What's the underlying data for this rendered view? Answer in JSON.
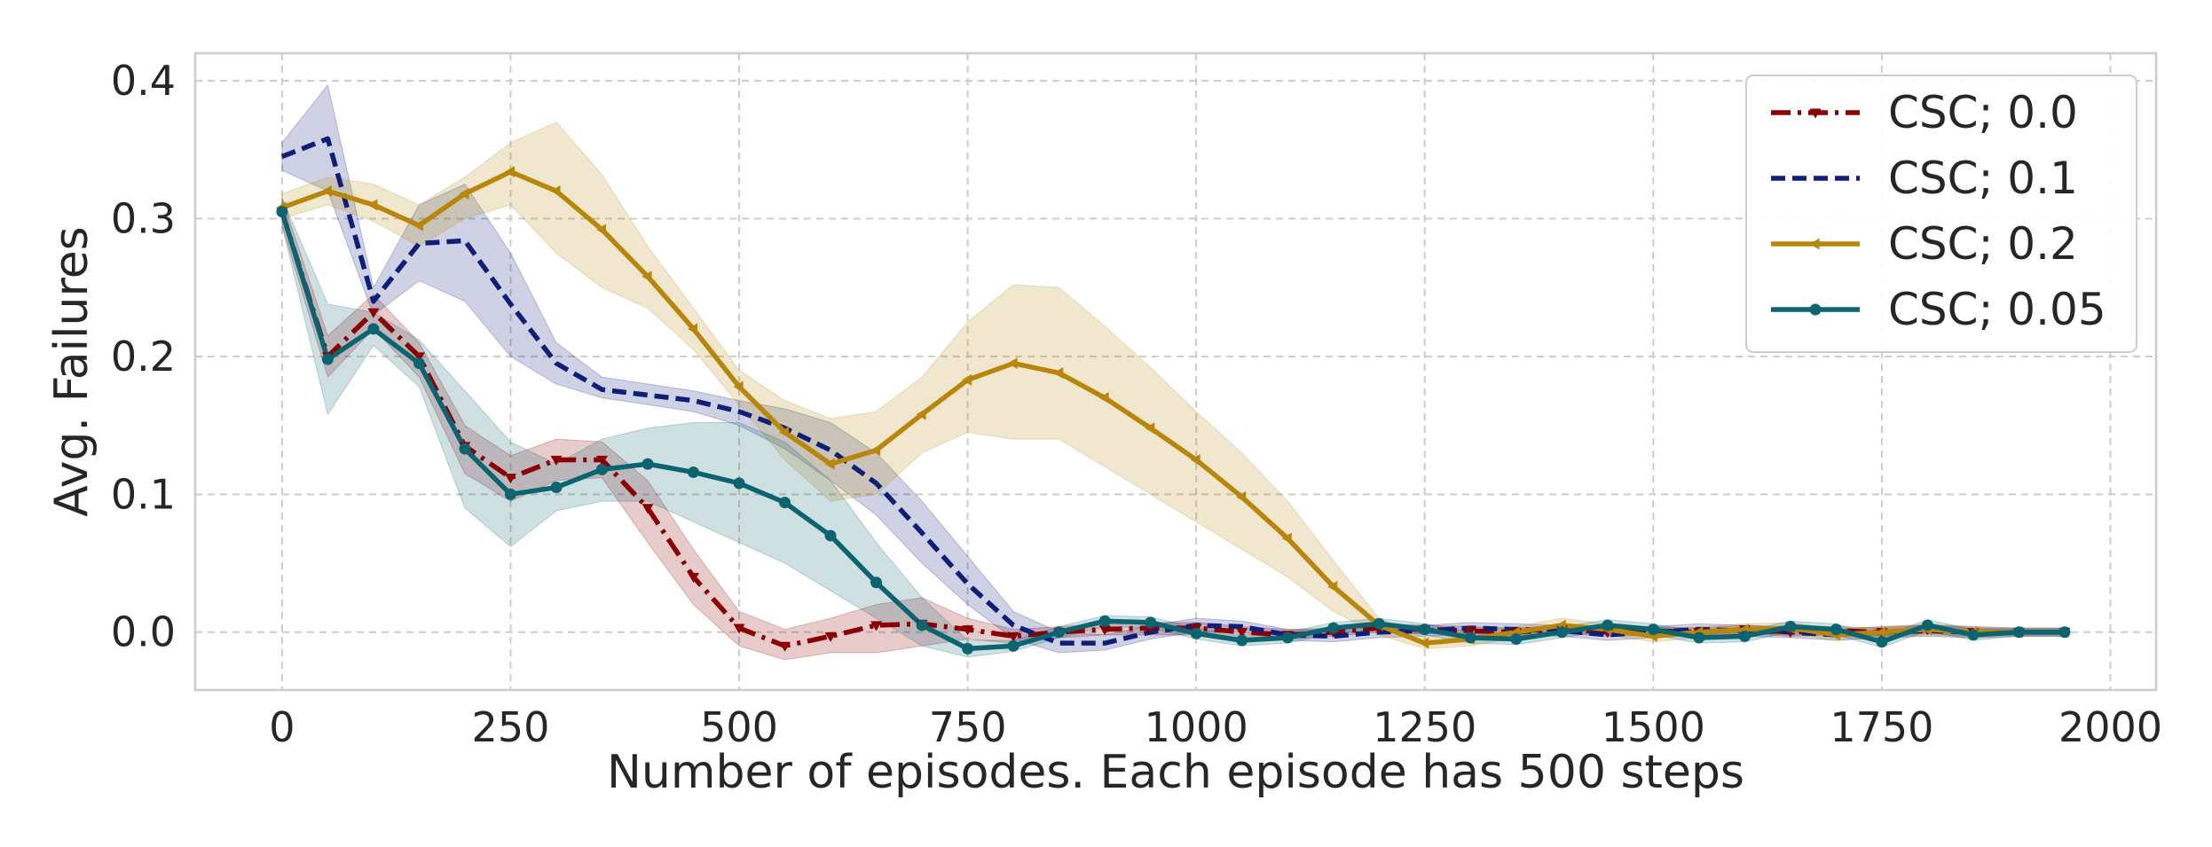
{
  "chart_data": {
    "type": "line",
    "title": "",
    "xlabel": "Number of episodes. Each episode has 500 steps",
    "ylabel": "Avg. Failures",
    "xlim": [
      -95,
      2050
    ],
    "ylim": [
      -0.042,
      0.42
    ],
    "x_ticks": [
      0,
      250,
      500,
      750,
      1000,
      1250,
      1500,
      1750,
      2000
    ],
    "x_tick_labels": [
      "0",
      "250",
      "500",
      "750",
      "1000",
      "1250",
      "1500",
      "1750",
      "2000"
    ],
    "y_ticks": [
      0.0,
      0.1,
      0.2,
      0.3,
      0.4
    ],
    "y_tick_labels": [
      "0.0",
      "0.1",
      "0.2",
      "0.3",
      "0.4"
    ],
    "grid": true,
    "legend_position": "top-right",
    "x": [
      0,
      50,
      100,
      150,
      200,
      250,
      300,
      350,
      400,
      450,
      500,
      550,
      600,
      650,
      700,
      750,
      800,
      850,
      900,
      950,
      1000,
      1050,
      1100,
      1150,
      1200,
      1250,
      1300,
      1350,
      1400,
      1450,
      1500,
      1550,
      1600,
      1650,
      1700,
      1750,
      1800,
      1850,
      1900,
      1950
    ],
    "series": [
      {
        "name": "CSC; 0.0",
        "color": "#8b0000",
        "dash": "dashdot",
        "marker": "triangle-down",
        "values": [
          0.305,
          0.2,
          0.232,
          0.2,
          0.135,
          0.112,
          0.125,
          0.125,
          0.09,
          0.04,
          0.003,
          -0.01,
          -0.003,
          0.005,
          0.006,
          0.002,
          -0.003,
          0.0,
          0.002,
          0.003,
          0.003,
          0.0,
          -0.002,
          0.0,
          0.003,
          0.002,
          0.001,
          0.0,
          0.002,
          0.0,
          0.001,
          0.0,
          0.002,
          0.0,
          0.001,
          0.0,
          0.002,
          0.0,
          0.0,
          0.0
        ],
        "band": [
          [
            0.295,
            0.315
          ],
          [
            0.185,
            0.215
          ],
          [
            0.22,
            0.245
          ],
          [
            0.185,
            0.21
          ],
          [
            0.115,
            0.15
          ],
          [
            0.095,
            0.128
          ],
          [
            0.11,
            0.14
          ],
          [
            0.112,
            0.138
          ],
          [
            0.065,
            0.11
          ],
          [
            0.02,
            0.06
          ],
          [
            -0.01,
            0.015
          ],
          [
            -0.02,
            0.002
          ],
          [
            -0.015,
            0.01
          ],
          [
            -0.015,
            0.02
          ],
          [
            -0.01,
            0.025
          ],
          [
            -0.005,
            0.01
          ],
          [
            -0.008,
            0.002
          ],
          [
            -0.004,
            0.004
          ],
          [
            -0.002,
            0.006
          ],
          [
            -0.002,
            0.007
          ],
          [
            -0.002,
            0.007
          ],
          [
            -0.004,
            0.004
          ],
          [
            -0.005,
            0.002
          ],
          [
            -0.003,
            0.003
          ],
          [
            0.0,
            0.006
          ],
          [
            -0.001,
            0.005
          ],
          [
            -0.002,
            0.004
          ],
          [
            -0.003,
            0.003
          ],
          [
            -0.001,
            0.005
          ],
          [
            -0.003,
            0.003
          ],
          [
            -0.002,
            0.004
          ],
          [
            -0.003,
            0.003
          ],
          [
            -0.001,
            0.005
          ],
          [
            -0.003,
            0.003
          ],
          [
            -0.002,
            0.004
          ],
          [
            -0.003,
            0.003
          ],
          [
            -0.001,
            0.005
          ],
          [
            -0.003,
            0.003
          ],
          [
            -0.002,
            0.002
          ],
          [
            -0.002,
            0.002
          ]
        ]
      },
      {
        "name": "CSC; 0.1",
        "color": "#0f1f78",
        "dash": "dashed",
        "marker": "none",
        "values": [
          0.345,
          0.358,
          0.24,
          0.282,
          0.284,
          0.238,
          0.195,
          0.176,
          0.172,
          0.168,
          0.16,
          0.148,
          0.132,
          0.108,
          0.072,
          0.035,
          0.005,
          -0.008,
          -0.008,
          0.0,
          0.005,
          0.004,
          -0.002,
          -0.003,
          0.0,
          0.001,
          0.003,
          0.002,
          0.001,
          -0.002,
          0.0,
          0.002,
          0.001,
          0.0,
          -0.002,
          0.0,
          0.001,
          0.0,
          0.0,
          0.0
        ],
        "band": [
          [
            0.335,
            0.355
          ],
          [
            0.32,
            0.397
          ],
          [
            0.23,
            0.25
          ],
          [
            0.255,
            0.31
          ],
          [
            0.24,
            0.325
          ],
          [
            0.2,
            0.275
          ],
          [
            0.18,
            0.21
          ],
          [
            0.17,
            0.185
          ],
          [
            0.165,
            0.18
          ],
          [
            0.16,
            0.175
          ],
          [
            0.15,
            0.168
          ],
          [
            0.133,
            0.162
          ],
          [
            0.11,
            0.152
          ],
          [
            0.085,
            0.13
          ],
          [
            0.05,
            0.095
          ],
          [
            0.02,
            0.055
          ],
          [
            -0.005,
            0.015
          ],
          [
            -0.015,
            0.0
          ],
          [
            -0.013,
            -0.002
          ],
          [
            -0.005,
            0.005
          ],
          [
            0.0,
            0.01
          ],
          [
            0.0,
            0.008
          ],
          [
            -0.006,
            0.002
          ],
          [
            -0.007,
            0.001
          ],
          [
            -0.004,
            0.004
          ],
          [
            -0.003,
            0.005
          ],
          [
            -0.001,
            0.007
          ],
          [
            -0.002,
            0.006
          ],
          [
            -0.003,
            0.005
          ],
          [
            -0.006,
            0.002
          ],
          [
            -0.004,
            0.004
          ],
          [
            -0.002,
            0.006
          ],
          [
            -0.003,
            0.005
          ],
          [
            -0.004,
            0.004
          ],
          [
            -0.006,
            0.002
          ],
          [
            -0.004,
            0.004
          ],
          [
            -0.003,
            0.005
          ],
          [
            -0.004,
            0.004
          ],
          [
            -0.003,
            0.003
          ],
          [
            -0.003,
            0.003
          ]
        ]
      },
      {
        "name": "CSC; 0.2",
        "color": "#b8860b",
        "dash": "solid",
        "marker": "triangle-left",
        "values": [
          0.308,
          0.32,
          0.31,
          0.295,
          0.318,
          0.334,
          0.32,
          0.292,
          0.258,
          0.22,
          0.178,
          0.145,
          0.122,
          0.132,
          0.158,
          0.183,
          0.195,
          0.188,
          0.17,
          0.148,
          0.125,
          0.098,
          0.068,
          0.033,
          0.005,
          -0.008,
          -0.005,
          0.0,
          0.005,
          0.002,
          -0.003,
          0.0,
          0.002,
          0.003,
          -0.002,
          0.0,
          0.002,
          0.0,
          0.0,
          0.0
        ],
        "band": [
          [
            0.3,
            0.318
          ],
          [
            0.31,
            0.33
          ],
          [
            0.298,
            0.325
          ],
          [
            0.28,
            0.31
          ],
          [
            0.3,
            0.33
          ],
          [
            0.31,
            0.355
          ],
          [
            0.275,
            0.37
          ],
          [
            0.25,
            0.332
          ],
          [
            0.235,
            0.28
          ],
          [
            0.205,
            0.235
          ],
          [
            0.165,
            0.19
          ],
          [
            0.125,
            0.168
          ],
          [
            0.095,
            0.155
          ],
          [
            0.1,
            0.16
          ],
          [
            0.13,
            0.185
          ],
          [
            0.145,
            0.225
          ],
          [
            0.14,
            0.252
          ],
          [
            0.14,
            0.25
          ],
          [
            0.12,
            0.222
          ],
          [
            0.1,
            0.192
          ],
          [
            0.08,
            0.16
          ],
          [
            0.06,
            0.13
          ],
          [
            0.04,
            0.095
          ],
          [
            0.015,
            0.052
          ],
          [
            -0.002,
            0.01
          ],
          [
            -0.012,
            -0.004
          ],
          [
            -0.01,
            0.0
          ],
          [
            -0.004,
            0.004
          ],
          [
            0.0,
            0.01
          ],
          [
            -0.002,
            0.006
          ],
          [
            -0.007,
            0.001
          ],
          [
            -0.004,
            0.004
          ],
          [
            -0.002,
            0.006
          ],
          [
            -0.001,
            0.007
          ],
          [
            -0.006,
            0.002
          ],
          [
            -0.004,
            0.004
          ],
          [
            -0.002,
            0.006
          ],
          [
            -0.004,
            0.004
          ],
          [
            -0.003,
            0.003
          ],
          [
            -0.003,
            0.003
          ]
        ]
      },
      {
        "name": "CSC; 0.05",
        "color": "#0d6471",
        "dash": "solid",
        "marker": "circle",
        "values": [
          0.305,
          0.198,
          0.22,
          0.195,
          0.133,
          0.1,
          0.105,
          0.118,
          0.122,
          0.116,
          0.108,
          0.094,
          0.07,
          0.036,
          0.005,
          -0.012,
          -0.01,
          0.0,
          0.008,
          0.007,
          -0.001,
          -0.006,
          -0.004,
          0.003,
          0.006,
          0.002,
          -0.004,
          -0.005,
          0.0,
          0.005,
          0.002,
          -0.004,
          -0.003,
          0.004,
          0.002,
          -0.007,
          0.005,
          -0.002,
          0.0,
          0.0
        ],
        "band": [
          [
            0.295,
            0.315
          ],
          [
            0.158,
            0.238
          ],
          [
            0.208,
            0.232
          ],
          [
            0.178,
            0.212
          ],
          [
            0.09,
            0.175
          ],
          [
            0.062,
            0.138
          ],
          [
            0.088,
            0.122
          ],
          [
            0.095,
            0.14
          ],
          [
            0.095,
            0.148
          ],
          [
            0.08,
            0.152
          ],
          [
            0.065,
            0.152
          ],
          [
            0.05,
            0.138
          ],
          [
            0.03,
            0.11
          ],
          [
            0.01,
            0.065
          ],
          [
            -0.01,
            0.025
          ],
          [
            -0.018,
            -0.006
          ],
          [
            -0.014,
            -0.006
          ],
          [
            -0.004,
            0.004
          ],
          [
            0.004,
            0.012
          ],
          [
            0.003,
            0.011
          ],
          [
            -0.005,
            0.003
          ],
          [
            -0.01,
            -0.002
          ],
          [
            -0.008,
            0.0
          ],
          [
            -0.001,
            0.007
          ],
          [
            0.002,
            0.01
          ],
          [
            -0.002,
            0.006
          ],
          [
            -0.008,
            0.0
          ],
          [
            -0.009,
            -0.001
          ],
          [
            -0.004,
            0.004
          ],
          [
            0.001,
            0.009
          ],
          [
            -0.002,
            0.006
          ],
          [
            -0.008,
            0.0
          ],
          [
            -0.007,
            0.001
          ],
          [
            0.0,
            0.008
          ],
          [
            -0.002,
            0.006
          ],
          [
            -0.011,
            -0.003
          ],
          [
            0.001,
            0.009
          ],
          [
            -0.006,
            0.002
          ],
          [
            -0.003,
            0.003
          ],
          [
            -0.003,
            0.003
          ]
        ]
      }
    ]
  }
}
